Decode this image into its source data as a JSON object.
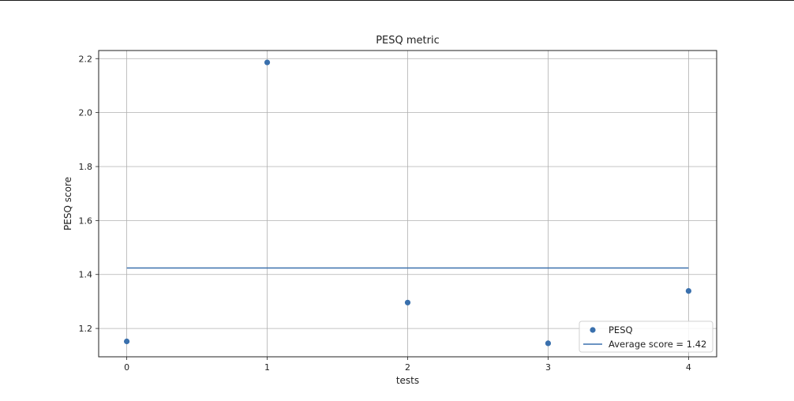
{
  "chart_data": {
    "type": "scatter",
    "title": "PESQ metric",
    "xlabel": "tests",
    "ylabel": "PESQ score",
    "x": [
      0,
      1,
      2,
      3,
      4
    ],
    "xticks": [
      "0",
      "1",
      "2",
      "3",
      "4"
    ],
    "yticks": [
      "1.2",
      "1.4",
      "1.6",
      "1.8",
      "2.0",
      "2.2"
    ],
    "xlim": [
      -0.2,
      4.2
    ],
    "ylim": [
      1.095,
      2.23
    ],
    "grid": true,
    "legend_position": "lower-right",
    "series": [
      {
        "name": "PESQ",
        "kind": "scatter",
        "color": "#3a70ad",
        "values": [
          1.152,
          2.186,
          1.296,
          1.145,
          1.339
        ]
      },
      {
        "name": "Average score = 1.42",
        "kind": "line",
        "color": "#3a70ad",
        "values": [
          1.424,
          1.424,
          1.424,
          1.424,
          1.424
        ]
      }
    ]
  }
}
